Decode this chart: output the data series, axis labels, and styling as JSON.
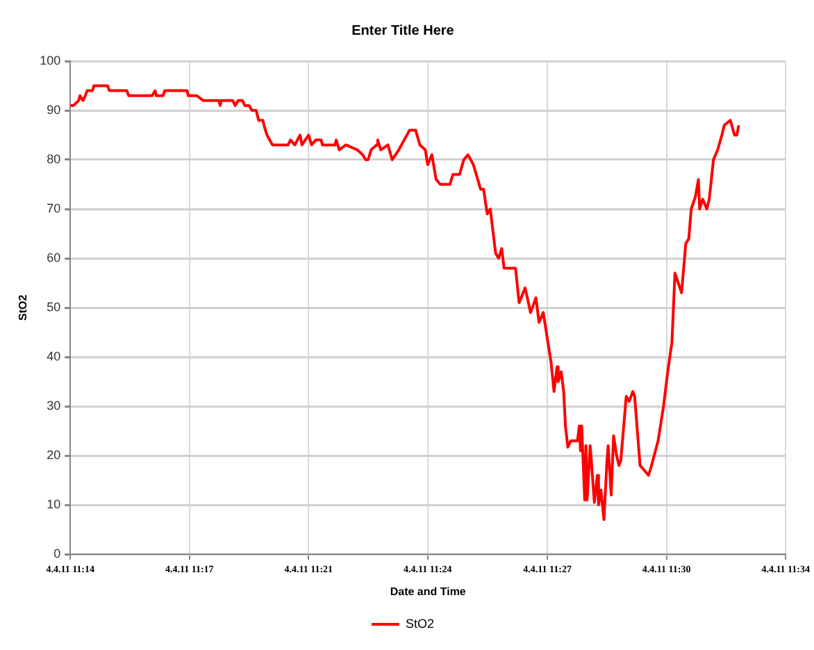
{
  "chart_data": {
    "type": "line",
    "title": "Enter Title Here",
    "xlabel": "Date and Time",
    "ylabel": "StO2",
    "xlim": [
      "--04-04T11:14:24",
      "--04-04T11:34:13"
    ],
    "xticks": [
      {
        "value": "--04-04T11:14:24",
        "label": "4.4.11 11:14"
      },
      {
        "value": "--04-04T11:17:42",
        "label": "4.4.11 11:17"
      },
      {
        "value": "--04-04T11:21:00",
        "label": "4.4.11 11:21"
      },
      {
        "value": "--04-04T11:24:18",
        "label": "4.4.11 11:24"
      },
      {
        "value": "--04-04T11:27:37",
        "label": "4.4.11 11:27"
      },
      {
        "value": "--04-04T11:30:55",
        "label": "4.4.11 11:30"
      },
      {
        "value": "--04-04T11:34:13",
        "label": "4.4.11 11:34"
      }
    ],
    "ylim": [
      0,
      100
    ],
    "yticks": [
      0,
      10,
      20,
      30,
      40,
      50,
      60,
      70,
      80,
      90,
      100
    ],
    "grid": true,
    "legend": "bottom",
    "marker": "none",
    "line_style": "solid",
    "series": [
      {
        "name": "StO2",
        "color": "#ff0000",
        "x": [
          "--04-04T11:14:24",
          "--04-04T11:14:29",
          "--04-04T11:14:38",
          "--04-04T11:14:40",
          "--04-04T11:14:45",
          "--04-04T11:14:49",
          "--04-04T11:14:52",
          "--04-04T11:15:01",
          "--04-04T11:15:03",
          "--04-04T11:15:26",
          "--04-04T11:15:29",
          "--04-04T11:15:58",
          "--04-04T11:16:01",
          "--04-04T11:16:40",
          "--04-04T11:16:45",
          "--04-04T11:16:47",
          "--04-04T11:16:58",
          "--04-04T11:17:01",
          "--04-04T11:17:38",
          "--04-04T11:17:40",
          "--04-04T11:17:54",
          "--04-04T11:18:05",
          "--04-04T11:18:31",
          "--04-04T11:18:33",
          "--04-04T11:18:35",
          "--04-04T11:18:54",
          "--04-04T11:18:58",
          "--04-04T11:19:03",
          "--04-04T11:19:10",
          "--04-04T11:19:14",
          "--04-04T11:19:21",
          "--04-04T11:19:26",
          "--04-04T11:19:33",
          "--04-04T11:19:37",
          "--04-04T11:19:44",
          "--04-04T11:19:47",
          "--04-04T11:19:51",
          "--04-04T11:20:00",
          "--04-04T11:20:26",
          "--04-04T11:20:30",
          "--04-04T11:20:37",
          "--04-04T11:20:46",
          "--04-04T11:20:49",
          "--04-04T11:21:00",
          "--04-04T11:21:05",
          "--04-04T11:21:12",
          "--04-04T11:21:21",
          "--04-04T11:21:23",
          "--04-04T11:21:44",
          "--04-04T11:21:46",
          "--04-04T11:21:51",
          "--04-04T11:22:02",
          "--04-04T11:22:21",
          "--04-04T11:22:30",
          "--04-04T11:22:35",
          "--04-04T11:22:39",
          "--04-04T11:22:44",
          "--04-04T11:22:53",
          "--04-04T11:22:55",
          "--04-04T11:23:00",
          "--04-04T11:23:12",
          "--04-04T11:23:19",
          "--04-04T11:23:30",
          "--04-04T11:23:39",
          "--04-04T11:23:48",
          "--04-04T11:23:58",
          "--04-04T11:24:05",
          "--04-04T11:24:14",
          "--04-04T11:24:18",
          "--04-04T11:24:25",
          "--04-04T11:24:32",
          "--04-04T11:24:39",
          "--04-04T11:24:55",
          "--04-04T11:25:00",
          "--04-04T11:25:11",
          "--04-04T11:25:18",
          "--04-04T11:25:25",
          "--04-04T11:25:34",
          "--04-04T11:25:46",
          "--04-04T11:25:51",
          "--04-04T11:25:57",
          "--04-04T11:26:02",
          "--04-04T11:26:11",
          "--04-04T11:26:16",
          "--04-04T11:26:21",
          "--04-04T11:26:25",
          "--04-04T11:26:44",
          "--04-04T11:26:50",
          "--04-04T11:27:00",
          "--04-04T11:27:09",
          "--04-04T11:27:18",
          "--04-04T11:27:23",
          "--04-04T11:27:30",
          "--04-04T11:27:34",
          "--04-04T11:27:37",
          "--04-04T11:27:43",
          "--04-04T11:27:48",
          "--04-04T11:27:53",
          "--04-04T11:27:55",
          "--04-04T11:28:00",
          "--04-04T11:28:04",
          "--04-04T11:28:07",
          "--04-04T11:28:11",
          "--04-04T11:28:16",
          "--04-04T11:28:27",
          "--04-04T11:28:30",
          "--04-04T11:28:32",
          "--04-04T11:28:34",
          "--04-04T11:28:39",
          "--04-04T11:28:41",
          "--04-04T11:28:43",
          "--04-04T11:28:48",
          "--04-04T11:28:50",
          "--04-04T11:28:55",
          "--04-04T11:29:00",
          "--04-04T11:29:02",
          "--04-04T11:29:06",
          "--04-04T11:29:11",
          "--04-04T11:29:16",
          "--04-04T11:29:18",
          "--04-04T11:29:23",
          "--04-04T11:29:27",
          "--04-04T11:29:32",
          "--04-04T11:29:36",
          "--04-04T11:29:39",
          "--04-04T11:29:48",
          "--04-04T11:29:53",
          "--04-04T11:29:59",
          "--04-04T11:30:02",
          "--04-04T11:30:11",
          "--04-04T11:30:18",
          "--04-04T11:30:25",
          "--04-04T11:30:29",
          "--04-04T11:30:41",
          "--04-04T11:30:50",
          "--04-04T11:30:57",
          "--04-04T11:31:04",
          "--04-04T11:31:09",
          "--04-04T11:31:20",
          "--04-04T11:31:27",
          "--04-04T11:31:32",
          "--04-04T11:31:36",
          "--04-04T11:31:43",
          "--04-04T11:31:48",
          "--04-04T11:31:50",
          "--04-04T11:31:55",
          "--04-04T11:32:02",
          "--04-04T11:32:06",
          "--04-04T11:32:13",
          "--04-04T11:32:20",
          "--04-04T11:32:27",
          "--04-04T11:32:31",
          "--04-04T11:32:41",
          "--04-04T11:32:48",
          "--04-04T11:32:52",
          "--04-04T11:32:55"
        ],
        "values": [
          91,
          91,
          92,
          93,
          92,
          93,
          94,
          94,
          95,
          95,
          94,
          94,
          93,
          93,
          94,
          93,
          93,
          94,
          94,
          93,
          93,
          92,
          92,
          91,
          92,
          92,
          91,
          92,
          92,
          91,
          91,
          90,
          90,
          88,
          88,
          86.5,
          85,
          83,
          83,
          84,
          83,
          85,
          83,
          85,
          83,
          84,
          84,
          83,
          83,
          84,
          82,
          83,
          82,
          81,
          80,
          80,
          82,
          83,
          84,
          82,
          83,
          80,
          82,
          84,
          86,
          86,
          83,
          82,
          79,
          81,
          76,
          75,
          75,
          77,
          77,
          80,
          81,
          79,
          74,
          74,
          69,
          70,
          61,
          60,
          62,
          58,
          58,
          51,
          54,
          49,
          52,
          47,
          49,
          46,
          43.6,
          39,
          33,
          38,
          35,
          37,
          33,
          26,
          21.7,
          23,
          23,
          26,
          21,
          26,
          11,
          22,
          11,
          22,
          19,
          10.5,
          16,
          10,
          13,
          7,
          19,
          22,
          12,
          24,
          20,
          18,
          19,
          32,
          31,
          33,
          32,
          18,
          17,
          16,
          17.5,
          23,
          30,
          37,
          43,
          57,
          53,
          63,
          64,
          70,
          72.5,
          76,
          70,
          72,
          70,
          72,
          80,
          82,
          85,
          87,
          88,
          85,
          85,
          87
        ]
      }
    ]
  }
}
